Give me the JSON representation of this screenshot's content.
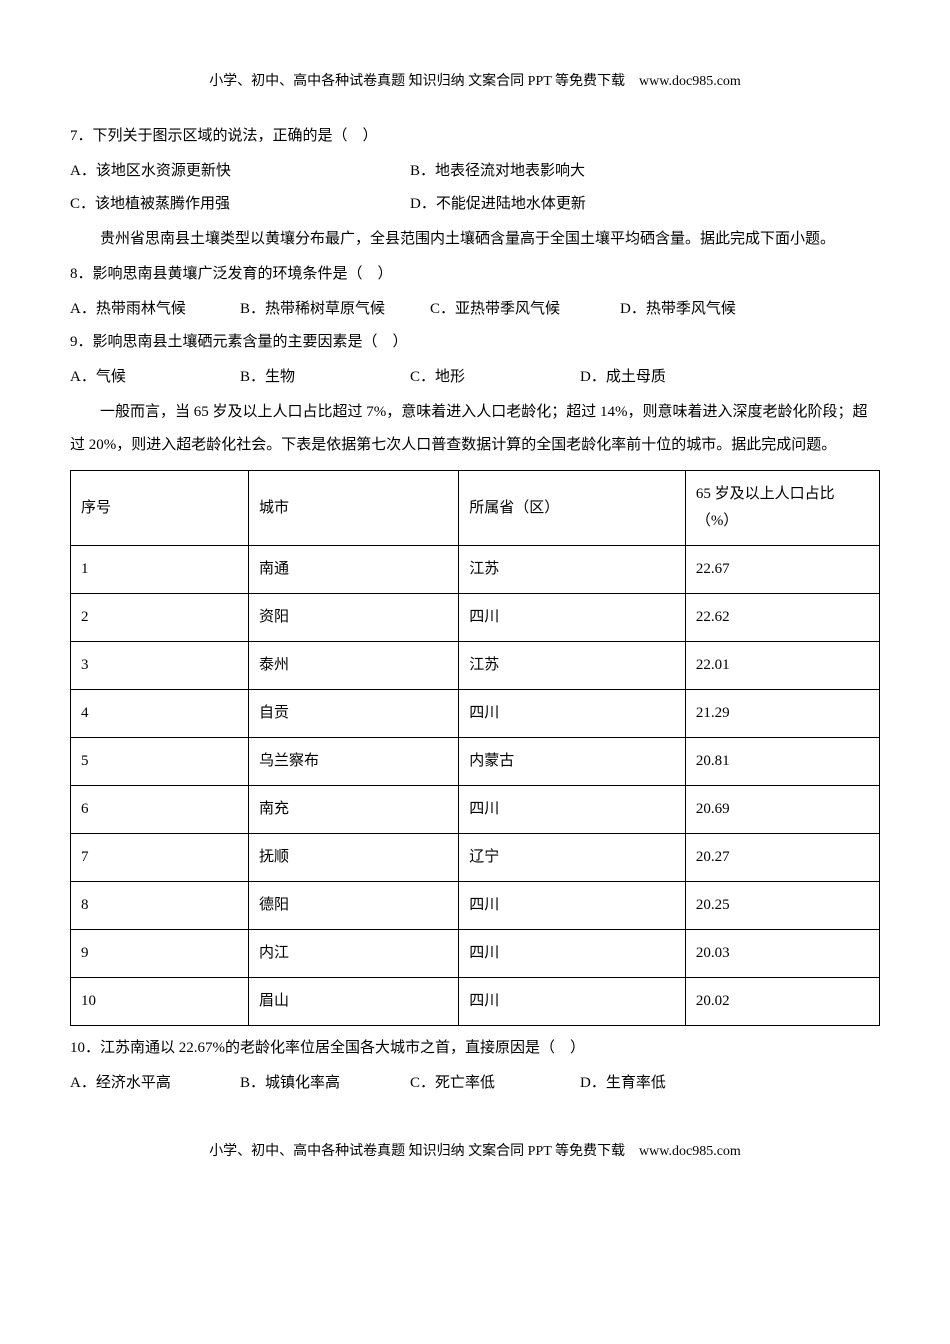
{
  "header_footer": "小学、初中、高中各种试卷真题 知识归纳 文案合同 PPT 等免费下载　www.doc985.com",
  "q7": {
    "stem": "7．下列关于图示区域的说法，正确的是（　）",
    "A": "A．该地区水资源更新快",
    "B": "B．地表径流对地表影响大",
    "C": "C．该地植被蒸腾作用强",
    "D": "D．不能促进陆地水体更新"
  },
  "passage1": "贵州省思南县土壤类型以黄壤分布最广，全县范围内土壤硒含量高于全国土壤平均硒含量。据此完成下面小题。",
  "q8": {
    "stem": "8．影响思南县黄壤广泛发育的环境条件是（　）",
    "A": "A．热带雨林气候",
    "B": "B．热带稀树草原气候",
    "C": "C．亚热带季风气候",
    "D": "D．热带季风气候"
  },
  "q9": {
    "stem": "9．影响思南县土壤硒元素含量的主要因素是（　）",
    "A": "A．气候",
    "B": "B．生物",
    "C": "C．地形",
    "D": "D．成土母质"
  },
  "passage2": "一般而言，当 65 岁及以上人口占比超过 7%，意味着进入人口老龄化；超过 14%，则意味着进入深度老龄化阶段；超过 20%，则进入超老龄化社会。下表是依据第七次人口普查数据计算的全国老龄化率前十位的城市。据此完成问题。",
  "table": {
    "head": {
      "c1": "序号",
      "c2": "城市",
      "c3": "所属省（区）",
      "c4_l1": "65 岁及以上人口占比",
      "c4_l2": "（%）"
    },
    "rows": [
      {
        "c1": "1",
        "c2": "南通",
        "c3": "江苏",
        "c4": "22.67"
      },
      {
        "c1": "2",
        "c2": "资阳",
        "c3": "四川",
        "c4": "22.62"
      },
      {
        "c1": "3",
        "c2": "泰州",
        "c3": "江苏",
        "c4": "22.01"
      },
      {
        "c1": "4",
        "c2": "自贡",
        "c3": "四川",
        "c4": "21.29"
      },
      {
        "c1": "5",
        "c2": "乌兰察布",
        "c3": "内蒙古",
        "c4": "20.81"
      },
      {
        "c1": "6",
        "c2": "南充",
        "c3": "四川",
        "c4": "20.69"
      },
      {
        "c1": "7",
        "c2": "抚顺",
        "c3": "辽宁",
        "c4": "20.27"
      },
      {
        "c1": "8",
        "c2": "德阳",
        "c3": "四川",
        "c4": "20.25"
      },
      {
        "c1": "9",
        "c2": "内江",
        "c3": "四川",
        "c4": "20.03"
      },
      {
        "c1": "10",
        "c2": "眉山",
        "c3": "四川",
        "c4": "20.02"
      }
    ]
  },
  "q10": {
    "stem": "10．江苏南通以 22.67%的老龄化率位居全国各大城市之首，直接原因是（　）",
    "A": "A．经济水平高",
    "B": "B．城镇化率高",
    "C": "C．死亡率低",
    "D": "D．生育率低"
  }
}
